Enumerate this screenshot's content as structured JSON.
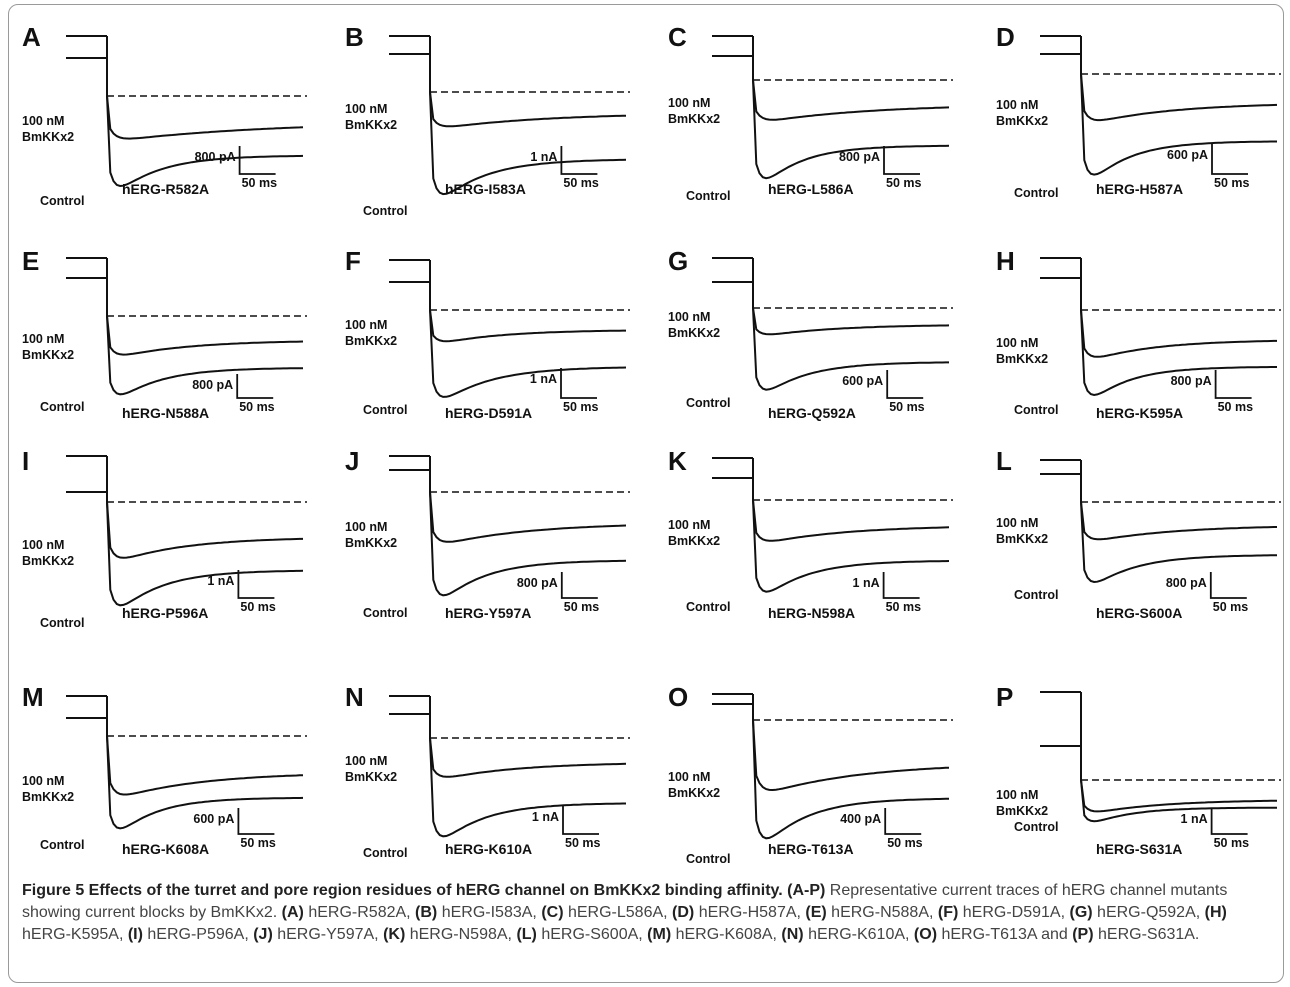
{
  "panels": [
    {
      "letter": "A",
      "mutant": "hERG-R582A",
      "scale_current": "800 pA",
      "scale_time": "50 ms",
      "toxin_label": [
        "100 nM",
        "BmKKx2"
      ],
      "control_label": "Control"
    },
    {
      "letter": "B",
      "mutant": "hERG-I583A",
      "scale_current": "1 nA",
      "scale_time": "50 ms",
      "toxin_label": [
        "100 nM",
        "BmKKx2"
      ],
      "control_label": "Control"
    },
    {
      "letter": "C",
      "mutant": "hERG-L586A",
      "scale_current": "800 pA",
      "scale_time": "50 ms",
      "toxin_label": [
        "100 nM",
        "BmKKx2"
      ],
      "control_label": "Control"
    },
    {
      "letter": "D",
      "mutant": "hERG-H587A",
      "scale_current": "600 pA",
      "scale_time": "50 ms",
      "toxin_label": [
        "100 nM",
        "BmKKx2"
      ],
      "control_label": "Control"
    },
    {
      "letter": "E",
      "mutant": "hERG-N588A",
      "scale_current": "800 pA",
      "scale_time": "50 ms",
      "toxin_label": [
        "100 nM",
        "BmKKx2"
      ],
      "control_label": "Control"
    },
    {
      "letter": "F",
      "mutant": "hERG-D591A",
      "scale_current": "1 nA",
      "scale_time": "50 ms",
      "toxin_label": [
        "100 nM",
        "BmKKx2"
      ],
      "control_label": "Control"
    },
    {
      "letter": "G",
      "mutant": "hERG-Q592A",
      "scale_current": "600 pA",
      "scale_time": "50 ms",
      "toxin_label": [
        "100 nM",
        "BmKKx2"
      ],
      "control_label": "Control"
    },
    {
      "letter": "H",
      "mutant": "hERG-K595A",
      "scale_current": "800 pA",
      "scale_time": "50 ms",
      "toxin_label": [
        "100 nM",
        "BmKKx2"
      ],
      "control_label": "Control"
    },
    {
      "letter": "I",
      "mutant": "hERG-P596A",
      "scale_current": "1 nA",
      "scale_time": "50 ms",
      "toxin_label": [
        "100 nM",
        "BmKKx2"
      ],
      "control_label": "Control"
    },
    {
      "letter": "J",
      "mutant": "hERG-Y597A",
      "scale_current": "800 pA",
      "scale_time": "50 ms",
      "toxin_label": [
        "100 nM",
        "BmKKx2"
      ],
      "control_label": "Control"
    },
    {
      "letter": "K",
      "mutant": "hERG-N598A",
      "scale_current": "1 nA",
      "scale_time": "50 ms",
      "toxin_label": [
        "100 nM",
        "BmKKx2"
      ],
      "control_label": "Control"
    },
    {
      "letter": "L",
      "mutant": "hERG-S600A",
      "scale_current": "800 pA",
      "scale_time": "50 ms",
      "toxin_label": [
        "100 nM",
        "BmKKx2"
      ],
      "control_label": "Control"
    },
    {
      "letter": "M",
      "mutant": "hERG-K608A",
      "scale_current": "600 pA",
      "scale_time": "50 ms",
      "toxin_label": [
        "100 nM",
        "BmKKx2"
      ],
      "control_label": "Control"
    },
    {
      "letter": "N",
      "mutant": "hERG-K610A",
      "scale_current": "1 nA",
      "scale_time": "50 ms",
      "toxin_label": [
        "100 nM",
        "BmKKx2"
      ],
      "control_label": "Control"
    },
    {
      "letter": "O",
      "mutant": "hERG-T613A",
      "scale_current": "400 pA",
      "scale_time": "50 ms",
      "toxin_label": [
        "100 nM",
        "BmKKx2"
      ],
      "control_label": "Control"
    },
    {
      "letter": "P",
      "mutant": "hERG-S631A",
      "scale_current": "1 nA",
      "scale_time": "50 ms",
      "toxin_label": [
        "100 nM",
        "BmKKx2"
      ],
      "control_label": "Control"
    }
  ],
  "caption": {
    "title": "Figure 5 Effects of the turret and pore region residues of hERG channel on BmKKx2 binding affinity.",
    "range_ref": "(A-P)",
    "intro": " Representative current traces of hERG channel mutants showing current blocks by BmKKx2. ",
    "items": [
      {
        "ref": "(A)",
        "text": " hERG-R582A, "
      },
      {
        "ref": "(B)",
        "text": " hERG-I583A, "
      },
      {
        "ref": "(C)",
        "text": " hERG-L586A, "
      },
      {
        "ref": "(D)",
        "text": " hERG-H587A, "
      },
      {
        "ref": "(E)",
        "text": " hERG-N588A, "
      },
      {
        "ref": "(F)",
        "text": " hERG-D591A, "
      },
      {
        "ref": "(G)",
        "text": " hERG-Q592A, "
      },
      {
        "ref": "(H)",
        "text": " hERG-K595A, "
      },
      {
        "ref": "(I)",
        "text": " hERG-P596A, "
      },
      {
        "ref": "(J)",
        "text": " hERG-Y597A, "
      },
      {
        "ref": "(K)",
        "text": " hERG-N598A, "
      },
      {
        "ref": "(L)",
        "text": " hERG-S600A, "
      },
      {
        "ref": "(M)",
        "text": " hERG-K608A, "
      },
      {
        "ref": "(N)",
        "text": " hERG-K610A, "
      },
      {
        "ref": "(O)",
        "text": " hERG-T613A and "
      },
      {
        "ref": "(P)",
        "text": " hERG-S631A."
      }
    ]
  }
}
